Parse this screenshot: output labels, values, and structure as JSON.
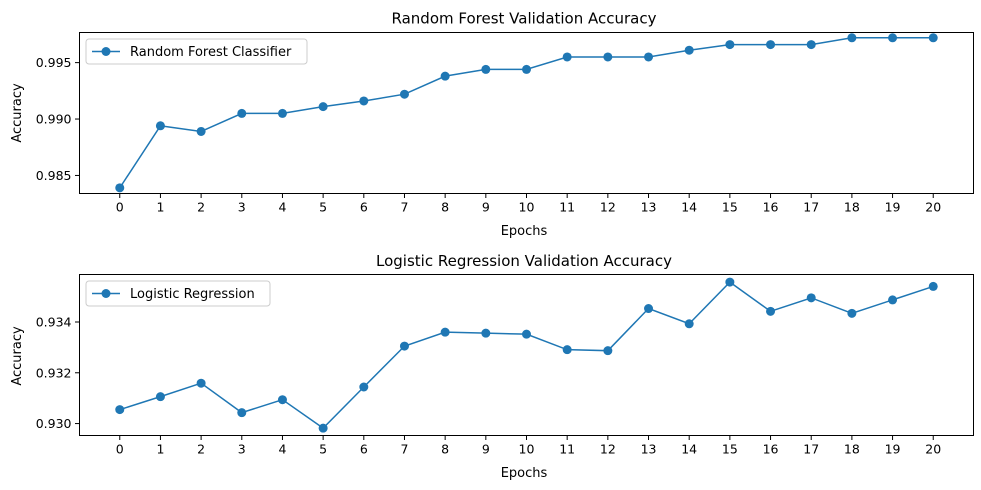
{
  "chart_data": [
    {
      "type": "line",
      "title": "Random Forest Validation Accuracy",
      "xlabel": "Epochs",
      "ylabel": "Accuracy",
      "x": [
        0,
        1,
        2,
        3,
        4,
        5,
        6,
        7,
        8,
        9,
        10,
        11,
        12,
        13,
        14,
        15,
        16,
        17,
        18,
        19,
        20
      ],
      "xticks": [
        "0",
        "1",
        "2",
        "3",
        "4",
        "5",
        "6",
        "7",
        "8",
        "9",
        "10",
        "11",
        "12",
        "13",
        "14",
        "15",
        "16",
        "17",
        "18",
        "19",
        "20"
      ],
      "yticks": [
        "0.985",
        "0.990",
        "0.995"
      ],
      "ytick_values": [
        0.985,
        0.99,
        0.995
      ],
      "ylim": [
        0.9834,
        0.99767
      ],
      "xlim": [
        -0.99,
        20.99
      ],
      "grid": false,
      "legend": "upper-left",
      "series": [
        {
          "name": "Random Forest Classifier",
          "color": "#1f77b4",
          "marker": "circle",
          "values": [
            0.9839,
            0.9894,
            0.9889,
            0.9905,
            0.9905,
            0.9911,
            0.9916,
            0.9922,
            0.9938,
            0.9944,
            0.9944,
            0.9955,
            0.9955,
            0.9955,
            0.9961,
            0.9966,
            0.9966,
            0.9966,
            0.9972,
            0.9972,
            0.9972
          ]
        }
      ]
    },
    {
      "type": "line",
      "title": "Logistic Regression Validation Accuracy",
      "xlabel": "Epochs",
      "ylabel": "Accuracy",
      "x": [
        0,
        1,
        2,
        3,
        4,
        5,
        6,
        7,
        8,
        9,
        10,
        11,
        12,
        13,
        14,
        15,
        16,
        17,
        18,
        19,
        20
      ],
      "xticks": [
        "0",
        "1",
        "2",
        "3",
        "4",
        "5",
        "6",
        "7",
        "8",
        "9",
        "10",
        "11",
        "12",
        "13",
        "14",
        "15",
        "16",
        "17",
        "18",
        "19",
        "20"
      ],
      "yticks": [
        "0.930",
        "0.932",
        "0.934"
      ],
      "ytick_values": [
        0.93,
        0.932,
        0.934
      ],
      "ylim": [
        0.92953,
        0.93587
      ],
      "xlim": [
        -0.99,
        20.99
      ],
      "grid": false,
      "legend": "upper-left",
      "series": [
        {
          "name": "Logistic Regression",
          "color": "#1f77b4",
          "marker": "circle",
          "values": [
            0.93055,
            0.93106,
            0.93159,
            0.93043,
            0.93094,
            0.92982,
            0.93144,
            0.93305,
            0.9336,
            0.93356,
            0.93352,
            0.93291,
            0.93287,
            0.93453,
            0.93393,
            0.93557,
            0.93442,
            0.93495,
            0.93434,
            0.93487,
            0.9354
          ]
        }
      ]
    }
  ]
}
